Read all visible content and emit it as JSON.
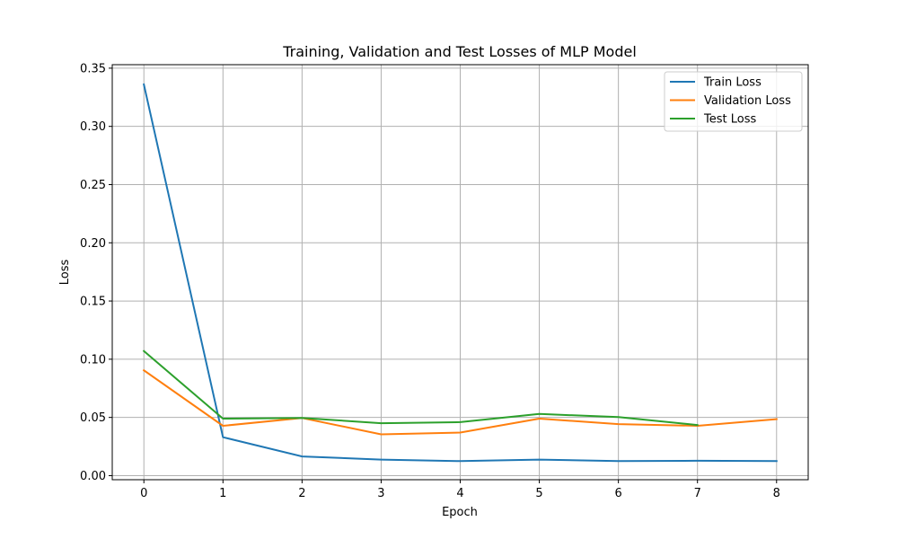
{
  "chart_data": {
    "type": "line",
    "title": "Training, Validation and Test Losses of MLP Model",
    "xlabel": "Epoch",
    "ylabel": "Loss",
    "xlim": [
      -0.4,
      8.4
    ],
    "ylim": [
      -0.0035,
      0.353
    ],
    "x_ticks": [
      "0",
      "1",
      "2",
      "3",
      "4",
      "5",
      "6",
      "7",
      "8"
    ],
    "x_tick_values": [
      0,
      1,
      2,
      3,
      4,
      5,
      6,
      7,
      8
    ],
    "y_ticks": [
      "0.00",
      "0.05",
      "0.10",
      "0.15",
      "0.20",
      "0.25",
      "0.30",
      "0.35"
    ],
    "y_tick_values": [
      0.0,
      0.05,
      0.1,
      0.15,
      0.2,
      0.25,
      0.3,
      0.35
    ],
    "grid": true,
    "legend_position": "top-right",
    "series": [
      {
        "name": "Train Loss",
        "color": "#1f77b4",
        "x": [
          0,
          1,
          2,
          3,
          4,
          5,
          6,
          7,
          8
        ],
        "y": [
          0.336,
          0.033,
          0.0165,
          0.0138,
          0.0125,
          0.0138,
          0.0125,
          0.0128,
          0.0125
        ]
      },
      {
        "name": "Validation Loss",
        "color": "#ff7f0e",
        "x": [
          0,
          1,
          2,
          3,
          4,
          5,
          6,
          7,
          8
        ],
        "y": [
          0.0905,
          0.0428,
          0.0495,
          0.0355,
          0.037,
          0.049,
          0.0443,
          0.0428,
          0.0485
        ]
      },
      {
        "name": "Test Loss",
        "color": "#2ca02c",
        "x": [
          0,
          1,
          2,
          3,
          4,
          5,
          6,
          7
        ],
        "y": [
          0.107,
          0.049,
          0.0495,
          0.045,
          0.046,
          0.053,
          0.0503,
          0.0435
        ]
      }
    ]
  }
}
